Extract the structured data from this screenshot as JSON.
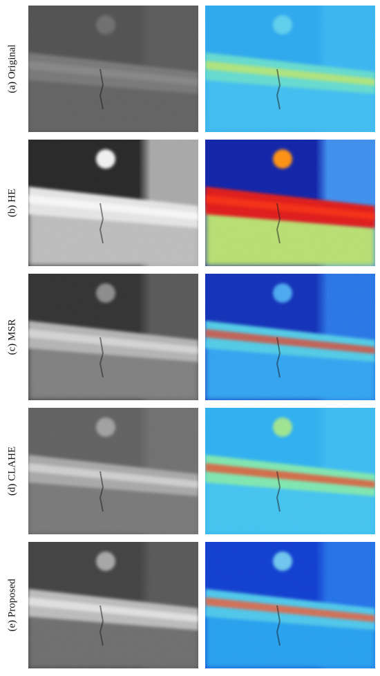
{
  "rows": [
    {
      "label": "(a) Original"
    },
    {
      "label": "(b) HE"
    },
    {
      "label": "(c) MSR"
    },
    {
      "label": "(d) CLAHE"
    },
    {
      "label": "(e) Proposed"
    }
  ]
}
